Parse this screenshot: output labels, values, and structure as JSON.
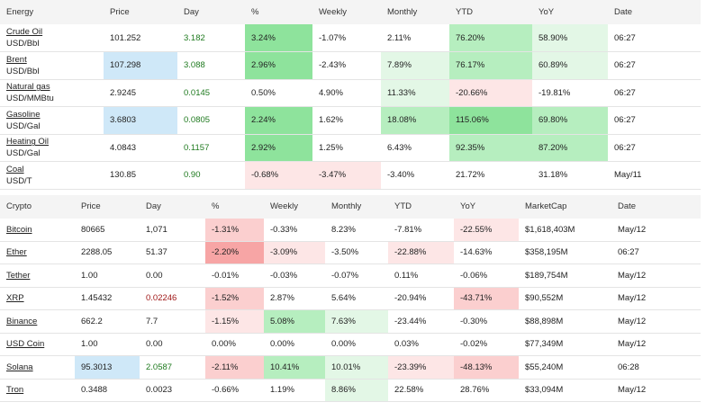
{
  "energy": {
    "headers": [
      "Energy",
      "Price",
      "Day",
      "%",
      "Weekly",
      "Monthly",
      "YTD",
      "YoY",
      "Date"
    ],
    "rows": [
      {
        "name": "Crude Oil",
        "unit": "USD/Bbl",
        "price": "101.252",
        "day": "3.182",
        "pct": "3.24%",
        "weekly": "-1.07%",
        "monthly": "2.11%",
        "ytd": "76.20%",
        "yoy": "58.90%",
        "date": "06:27"
      },
      {
        "name": "Brent",
        "unit": "USD/Bbl",
        "price": "107.298",
        "day": "3.088",
        "pct": "2.96%",
        "weekly": "-2.43%",
        "monthly": "7.89%",
        "ytd": "76.17%",
        "yoy": "60.89%",
        "date": "06:27"
      },
      {
        "name": "Natural gas",
        "unit": "USD/MMBtu",
        "price": "2.9245",
        "day": "0.0145",
        "pct": "0.50%",
        "weekly": "4.90%",
        "monthly": "11.33%",
        "ytd": "-20.66%",
        "yoy": "-19.81%",
        "date": "06:27"
      },
      {
        "name": "Gasoline",
        "unit": "USD/Gal",
        "price": "3.6803",
        "day": "0.0805",
        "pct": "2.24%",
        "weekly": "1.62%",
        "monthly": "18.08%",
        "ytd": "115.06%",
        "yoy": "69.80%",
        "date": "06:27"
      },
      {
        "name": "Heating Oil",
        "unit": "USD/Gal",
        "price": "4.0843",
        "day": "0.1157",
        "pct": "2.92%",
        "weekly": "1.25%",
        "monthly": "6.43%",
        "ytd": "92.35%",
        "yoy": "87.20%",
        "date": "06:27"
      },
      {
        "name": "Coal",
        "unit": "USD/T",
        "price": "130.85",
        "day": "0.90",
        "pct": "-0.68%",
        "weekly": "-3.47%",
        "monthly": "-3.40%",
        "ytd": "21.72%",
        "yoy": "31.18%",
        "date": "May/11"
      }
    ]
  },
  "crypto": {
    "headers": [
      "Crypto",
      "Price",
      "Day",
      "%",
      "Weekly",
      "Monthly",
      "YTD",
      "YoY",
      "MarketCap",
      "Date"
    ],
    "rows": [
      {
        "name": "Bitcoin",
        "price": "80665",
        "day": "1,071",
        "pct": "-1.31%",
        "weekly": "-0.33%",
        "monthly": "8.23%",
        "ytd": "-7.81%",
        "yoy": "-22.55%",
        "mcap": "$1,618,403M",
        "date": "May/12"
      },
      {
        "name": "Ether",
        "price": "2288.05",
        "day": "51.37",
        "pct": "-2.20%",
        "weekly": "-3.09%",
        "monthly": "-3.50%",
        "ytd": "-22.88%",
        "yoy": "-14.63%",
        "mcap": "$358,195M",
        "date": "06:27"
      },
      {
        "name": "Tether",
        "price": "1.00",
        "day": "0.00",
        "pct": "-0.01%",
        "weekly": "-0.03%",
        "monthly": "-0.07%",
        "ytd": "0.11%",
        "yoy": "-0.06%",
        "mcap": "$189,754M",
        "date": "May/12"
      },
      {
        "name": "XRP",
        "price": "1.45432",
        "day": "0.02246",
        "pct": "-1.52%",
        "weekly": "2.87%",
        "monthly": "5.64%",
        "ytd": "-20.94%",
        "yoy": "-43.71%",
        "mcap": "$90,552M",
        "date": "May/12"
      },
      {
        "name": "Binance",
        "price": "662.2",
        "day": "7.7",
        "pct": "-1.15%",
        "weekly": "5.08%",
        "monthly": "7.63%",
        "ytd": "-23.44%",
        "yoy": "-0.30%",
        "mcap": "$88,898M",
        "date": "May/12"
      },
      {
        "name": "USD Coin",
        "price": "1.00",
        "day": "0.00",
        "pct": "0.00%",
        "weekly": "0.00%",
        "monthly": "0.00%",
        "ytd": "0.03%",
        "yoy": "-0.02%",
        "mcap": "$77,349M",
        "date": "May/12"
      },
      {
        "name": "Solana",
        "price": "95.3013",
        "day": "2.0587",
        "pct": "-2.11%",
        "weekly": "10.41%",
        "monthly": "10.01%",
        "ytd": "-23.39%",
        "yoy": "-48.13%",
        "mcap": "$55,240M",
        "date": "06:28"
      },
      {
        "name": "Tron",
        "price": "0.3488",
        "day": "0.0023",
        "pct": "-0.66%",
        "weekly": "1.19%",
        "monthly": "8.86%",
        "ytd": "22.58%",
        "yoy": "28.76%",
        "mcap": "$33,094M",
        "date": "May/12"
      }
    ]
  },
  "colors": {
    "up": "#1f7a1f",
    "down": "#a01818",
    "highlight": "#cfe8f8"
  }
}
